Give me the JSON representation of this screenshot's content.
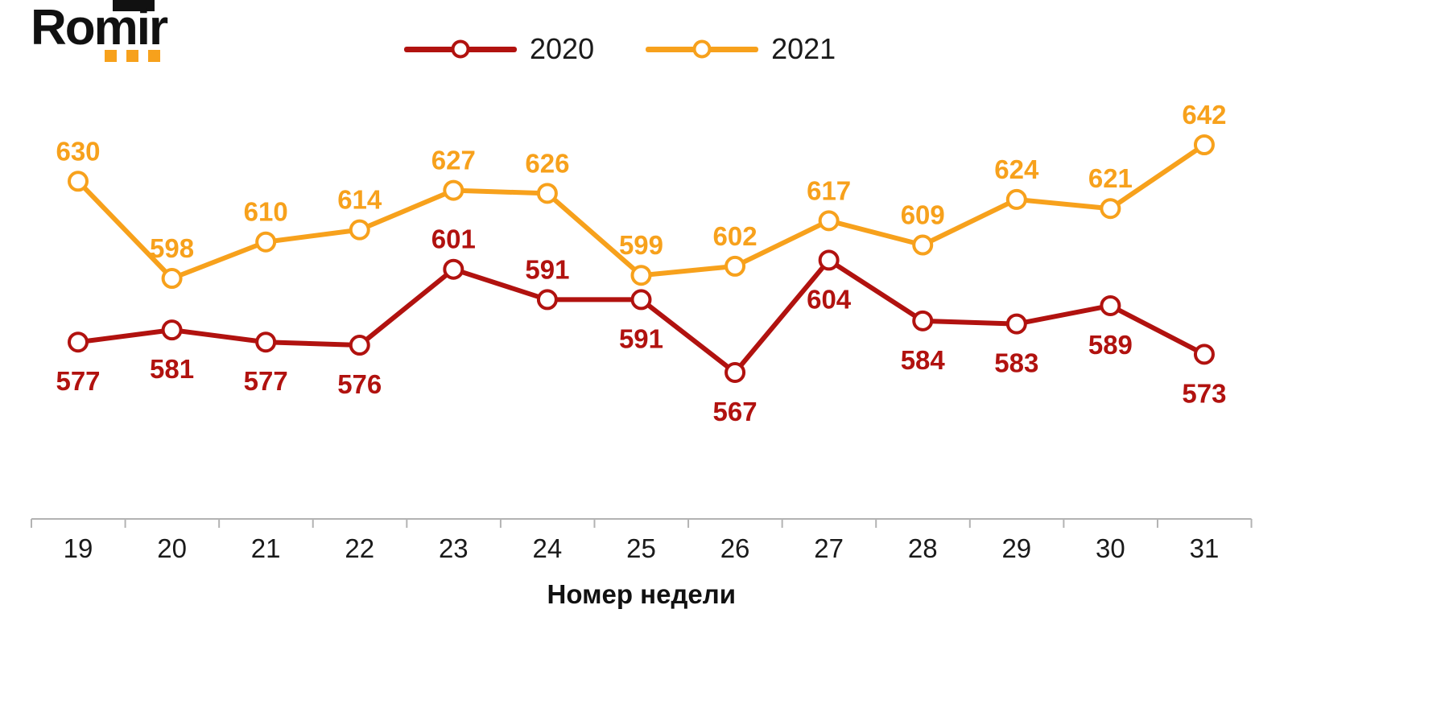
{
  "logo": {
    "text": "Romir",
    "accent_color": "#F7A11C"
  },
  "legend": [
    {
      "label": "2020",
      "color": "#B1120F"
    },
    {
      "label": "2021",
      "color": "#F7A11C"
    }
  ],
  "chart_data": {
    "type": "line",
    "x": [
      19,
      20,
      21,
      22,
      23,
      24,
      25,
      26,
      27,
      28,
      29,
      30,
      31
    ],
    "xlabel": "Номер недели",
    "ylabel": "",
    "ylim": [
      560,
      650
    ],
    "grid": false,
    "legend_position": "top",
    "series": [
      {
        "name": "2020",
        "color": "#B1120F",
        "values": [
          577,
          581,
          577,
          576,
          601,
          591,
          591,
          567,
          604,
          584,
          583,
          589,
          573
        ],
        "label_positions": [
          "below",
          "below",
          "below",
          "below",
          "above",
          "above",
          "below",
          "below",
          "below",
          "below",
          "below",
          "below",
          "below"
        ]
      },
      {
        "name": "2021",
        "color": "#F7A11C",
        "values": [
          630,
          598,
          610,
          614,
          627,
          626,
          599,
          602,
          617,
          609,
          624,
          621,
          642
        ],
        "label_positions": [
          "above",
          "above",
          "above",
          "above",
          "above",
          "above",
          "above",
          "above",
          "above",
          "above",
          "above",
          "above",
          "above"
        ]
      }
    ]
  }
}
